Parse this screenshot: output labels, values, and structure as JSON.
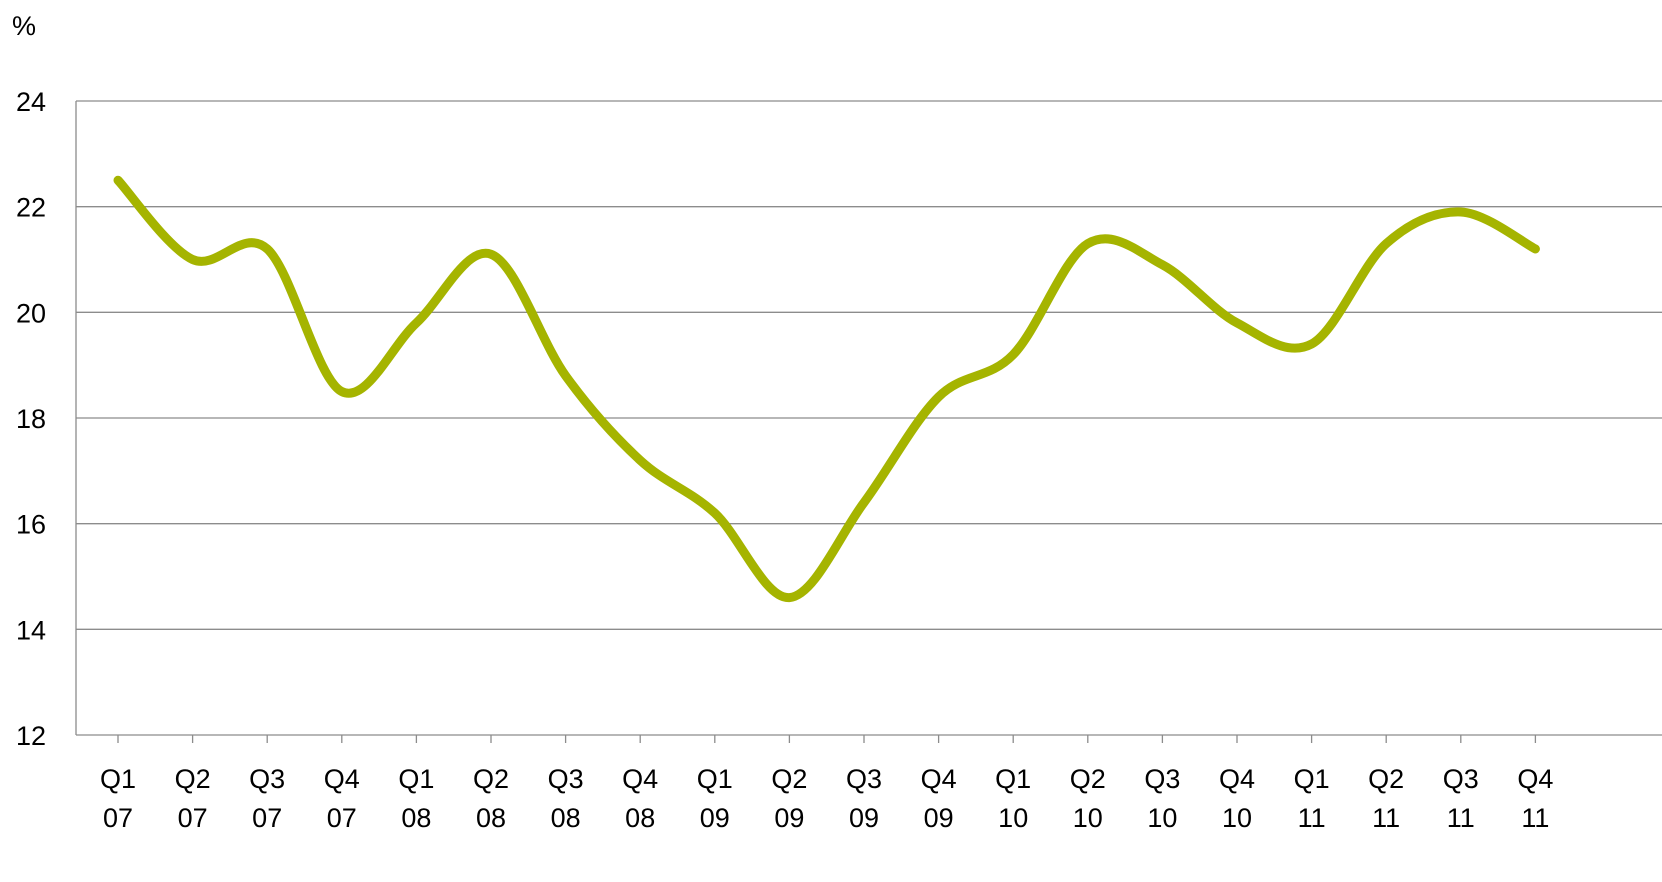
{
  "chart_data": {
    "type": "line",
    "ylabel": "%",
    "ylim": [
      12,
      24
    ],
    "yticks": [
      12,
      14,
      16,
      18,
      20,
      22,
      24
    ],
    "grid": true,
    "x_quarters": [
      "Q1",
      "Q2",
      "Q3",
      "Q4",
      "Q1",
      "Q2",
      "Q3",
      "Q4",
      "Q1",
      "Q2",
      "Q3",
      "Q4",
      "Q1",
      "Q2",
      "Q3",
      "Q4",
      "Q1",
      "Q2",
      "Q3",
      "Q4"
    ],
    "x_years": [
      "07",
      "07",
      "07",
      "07",
      "08",
      "08",
      "08",
      "08",
      "09",
      "09",
      "09",
      "09",
      "10",
      "10",
      "10",
      "10",
      "11",
      "11",
      "11",
      "11"
    ],
    "series": [
      {
        "color": "#a5b400",
        "values": [
          22.5,
          21.0,
          21.2,
          18.5,
          19.8,
          21.1,
          18.8,
          17.2,
          16.2,
          14.6,
          16.4,
          18.4,
          19.2,
          21.3,
          20.9,
          19.8,
          19.4,
          21.3,
          21.9,
          21.2
        ]
      }
    ]
  }
}
